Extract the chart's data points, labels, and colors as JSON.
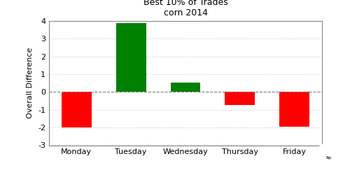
{
  "title_line1": "Best 10% of Trades",
  "title_line2": "corn 2014",
  "categories": [
    "Monday",
    "Tuesday",
    "Wednesday",
    "Thursday",
    "Friday"
  ],
  "values": [
    -2.0,
    3.875,
    0.525,
    -0.72,
    -1.95
  ],
  "colors": [
    "red",
    "green",
    "green",
    "red",
    "red"
  ],
  "ylabel": "Overall Difference",
  "ylim": [
    -3,
    4
  ],
  "yticks": [
    -3,
    -2,
    -1,
    0,
    1,
    2,
    3,
    4
  ],
  "background_color": "#ffffff",
  "grid_color": "#cccccc",
  "bar_width": 0.55,
  "title_fontsize": 9,
  "label_fontsize": 8,
  "tick_fontsize": 8
}
